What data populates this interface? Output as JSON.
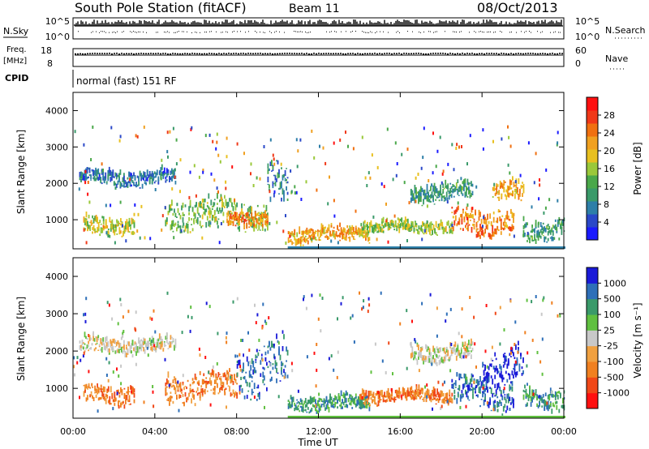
{
  "header": {
    "title": "South Pole Station (fitACF)",
    "beam": "Beam 11",
    "date": "08/Oct/2013"
  },
  "top_panels": {
    "nsky_label": "N.Sky",
    "nsearch_label": "N.Search",
    "nsky_ticks": [
      "10^5",
      "10^0"
    ],
    "nsearch_ticks": [
      "10^5",
      "10^0"
    ],
    "freq_label_1": "Freq.",
    "freq_label_2": "[MHz]",
    "freq_ticks": [
      "18",
      "8"
    ],
    "nave_label": "Nave",
    "nave_ticks": [
      "60",
      "0"
    ],
    "cpid_label": "CPID",
    "cpid_text": "normal (fast) 151 RF"
  },
  "colors": {
    "power": [
      "#1a1aff",
      "#2a48c8",
      "#2e7fa8",
      "#3a9a6a",
      "#4aa84a",
      "#9ac83a",
      "#e8c020",
      "#f0a020",
      "#f07010",
      "#f03818",
      "#ff1010"
    ],
    "velocity": [
      "#ff1010",
      "#f04818",
      "#f08020",
      "#f0a040",
      "#c8c8c8",
      "#60c040",
      "#3a9a6a",
      "#2e6fb8",
      "#1a1ad8"
    ]
  },
  "chart_data": [
    {
      "type": "heatmap",
      "name": "Power panel",
      "ylabel": "Slant Range [km]",
      "yticks": [
        1000,
        2000,
        3000,
        4000
      ],
      "ylim": [
        200,
        4500
      ],
      "xlim": [
        0,
        24
      ],
      "colorbar_label": "Power [dB]",
      "colorbar_ticks": [
        "4",
        "8",
        "12",
        "16",
        "20",
        "24",
        "28"
      ],
      "colorbar_range": [
        0,
        32
      ],
      "bands": [
        {
          "t0": 0.3,
          "t1": 5.0,
          "r": 2100,
          "w": 200,
          "v": 6
        },
        {
          "t0": 0.5,
          "t1": 3.0,
          "r": 800,
          "w": 250,
          "v": 18
        },
        {
          "t0": 4.5,
          "t1": 9.5,
          "r": 1100,
          "w": 400,
          "v": 14
        },
        {
          "t0": 7.5,
          "t1": 9.5,
          "r": 1000,
          "w": 200,
          "v": 24
        },
        {
          "t0": 9.5,
          "t1": 10.5,
          "r": 1800,
          "w": 600,
          "v": 8
        },
        {
          "t0": 10.5,
          "t1": 14.5,
          "r": 550,
          "w": 200,
          "v": 22
        },
        {
          "t0": 14.0,
          "t1": 18.5,
          "r": 750,
          "w": 180,
          "v": 16
        },
        {
          "t0": 16.5,
          "t1": 19.5,
          "r": 1700,
          "w": 250,
          "v": 10
        },
        {
          "t0": 18.5,
          "t1": 21.5,
          "r": 900,
          "w": 400,
          "v": 24
        },
        {
          "t0": 20.5,
          "t1": 22.0,
          "r": 1700,
          "w": 300,
          "v": 22
        },
        {
          "t0": 22.0,
          "t1": 24.0,
          "r": 700,
          "w": 300,
          "v": 10
        }
      ]
    },
    {
      "type": "heatmap",
      "name": "Velocity panel",
      "xlabel": "Time UT",
      "ylabel": "Slant Range [km]",
      "yticks": [
        1000,
        2000,
        3000,
        4000
      ],
      "ylim": [
        200,
        4500
      ],
      "xlim": [
        0,
        24
      ],
      "xticks": [
        "00:00",
        "04:00",
        "08:00",
        "12:00",
        "16:00",
        "20:00",
        "00:00"
      ],
      "colorbar_label": "Velocity [m s⁻¹]",
      "colorbar_ticks": [
        "-1000",
        "-500",
        "-100",
        "-25",
        "25",
        "100",
        "500",
        "1000"
      ],
      "bands": [
        {
          "t0": 0.3,
          "t1": 5.0,
          "r": 2100,
          "w": 200,
          "v": 4
        },
        {
          "t0": 0.5,
          "t1": 3.0,
          "r": 800,
          "w": 250,
          "v": 2
        },
        {
          "t0": 4.5,
          "t1": 8.0,
          "r": 1000,
          "w": 400,
          "v": 2
        },
        {
          "t0": 8.0,
          "t1": 10.5,
          "r": 1500,
          "w": 700,
          "v": 7
        },
        {
          "t0": 10.5,
          "t1": 14.5,
          "r": 550,
          "w": 200,
          "v": 6
        },
        {
          "t0": 14.0,
          "t1": 18.5,
          "r": 750,
          "w": 180,
          "v": 2
        },
        {
          "t0": 16.5,
          "t1": 19.5,
          "r": 1900,
          "w": 250,
          "v": 4
        },
        {
          "t0": 18.5,
          "t1": 21.5,
          "r": 800,
          "w": 400,
          "v": 7
        },
        {
          "t0": 20.0,
          "t1": 22.0,
          "r": 1500,
          "w": 500,
          "v": 8
        },
        {
          "t0": 22.0,
          "t1": 24.0,
          "r": 700,
          "w": 300,
          "v": 6
        }
      ]
    }
  ]
}
